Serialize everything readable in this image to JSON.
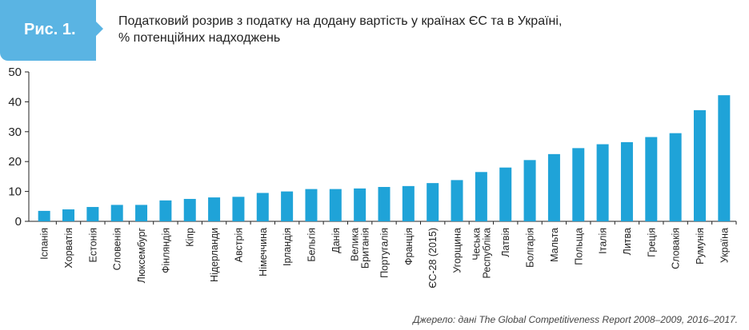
{
  "figure": {
    "label": "Рис. 1.",
    "title_line1": "Податковий розрив з податку на додану вартість у країнах ЄС та в Україні,",
    "title_line2": "% потенційних надходжень",
    "source": "Джерело: дані The Global Competitiveness Report 2008–2009, 2016–2017."
  },
  "colors": {
    "accent": "#5ab4e3",
    "bar": "#1fa3d8",
    "axis": "#222222"
  },
  "chart_data": {
    "type": "bar",
    "categories": [
      "Іспанія",
      "Хорватія",
      "Естонія",
      "Словенія",
      "Люксембург",
      "Фінляндія",
      "Кіпр",
      "Нідерланди",
      "Австрія",
      "Німеччина",
      "Ірландія",
      "Бельгія",
      "Данія",
      "Велика Британія",
      "Португалія",
      "Франція",
      "ЄС-28 (2015)",
      "Угорщина",
      "Чеська Республіка",
      "Латвія",
      "Болгарія",
      "Мальта",
      "Польща",
      "Італія",
      "Литва",
      "Греція",
      "Словакія",
      "Румунія",
      "Україна"
    ],
    "values": [
      3.5,
      4.0,
      4.8,
      5.5,
      5.5,
      7.0,
      7.5,
      8.0,
      8.2,
      9.5,
      10.0,
      10.8,
      10.8,
      11.0,
      11.5,
      11.8,
      12.8,
      13.8,
      16.5,
      18.0,
      20.5,
      22.5,
      24.5,
      25.8,
      26.5,
      28.2,
      29.5,
      37.2,
      42.2
    ],
    "ylim": [
      0,
      50
    ],
    "yticks": [
      0,
      10,
      20,
      30,
      40,
      50
    ],
    "grid": false,
    "title": "",
    "xlabel": "",
    "ylabel": ""
  }
}
